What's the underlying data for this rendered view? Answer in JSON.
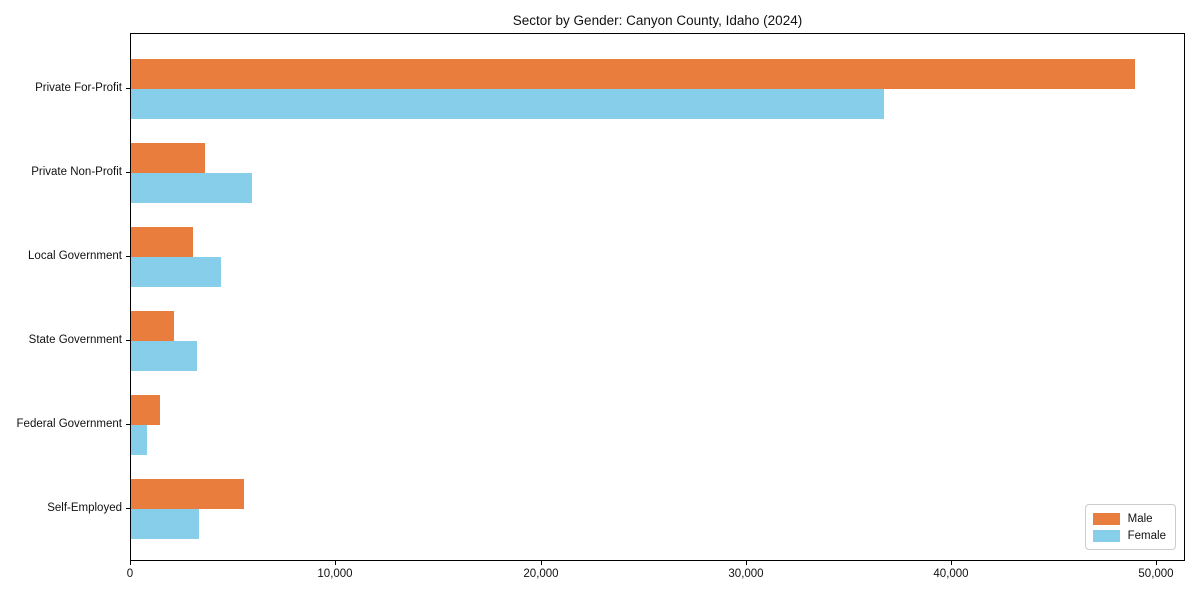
{
  "chart_data": {
    "type": "bar",
    "orientation": "horizontal",
    "title": "Sector by Gender: Canyon County, Idaho (2024)",
    "categories": [
      "Private For-Profit",
      "Private Non-Profit",
      "Local Government",
      "State Government",
      "Federal Government",
      "Self-Employed"
    ],
    "series": [
      {
        "name": "Male",
        "color": "#e87d3e",
        "values": [
          48900,
          3600,
          3000,
          2100,
          1400,
          5500
        ]
      },
      {
        "name": "Female",
        "color": "#87ceeb",
        "values": [
          36700,
          5900,
          4400,
          3200,
          800,
          3300
        ]
      }
    ],
    "xlabel": "",
    "ylabel": "",
    "xlim": [
      0,
      51300
    ],
    "xticks": [
      0,
      10000,
      20000,
      30000,
      40000,
      50000
    ],
    "xtick_labels": [
      "0",
      "10,000",
      "20,000",
      "30,000",
      "40,000",
      "50,000"
    ],
    "grid": false,
    "legend_position": "lower-right"
  },
  "colors": {
    "male": "#e87d3e",
    "female": "#87ceeb",
    "spine": "#000000",
    "legend_border": "#cccccc",
    "text": "#111111"
  }
}
